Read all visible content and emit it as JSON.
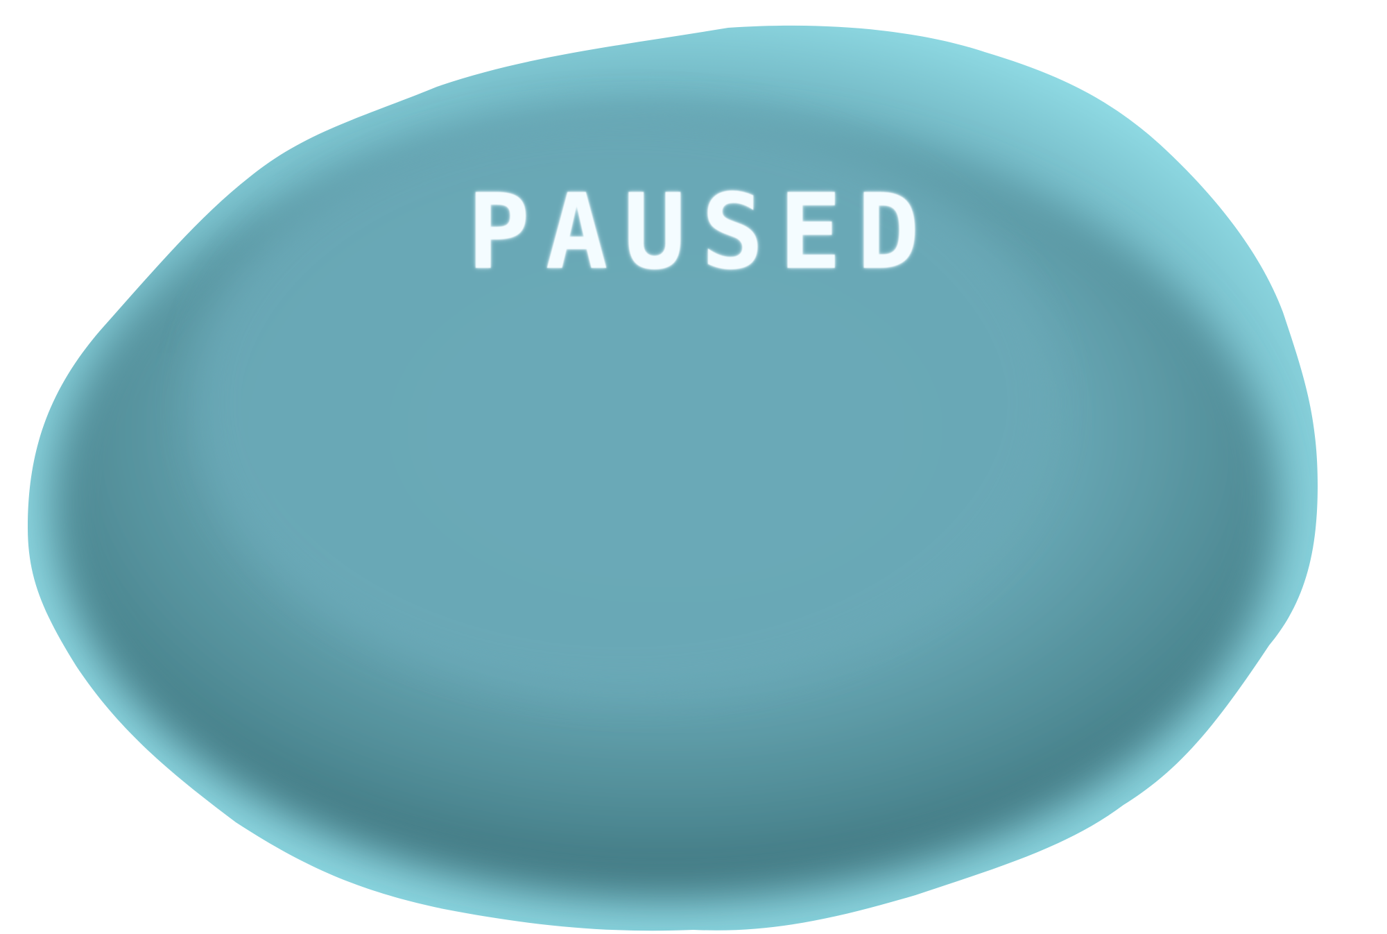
{
  "pause_screen": {
    "title": "PAUSED"
  },
  "colors": {
    "blob_rim": "#93dfe8",
    "blob_body": "#6aa8b6",
    "blob_shadow": "#3e737c",
    "text": "#f4fcff",
    "background": "#ffffff"
  }
}
